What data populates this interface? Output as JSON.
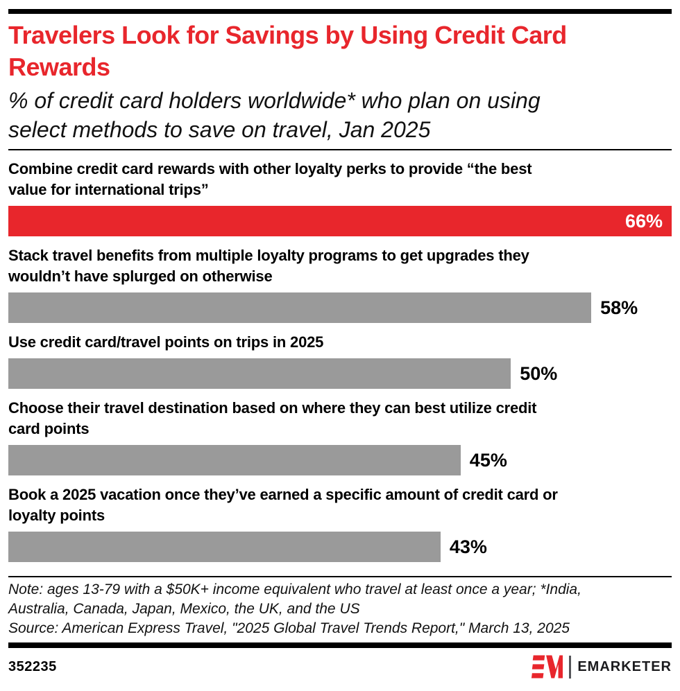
{
  "colors": {
    "accent": "#e8262c",
    "bar_gray": "#9a9a9a",
    "text": "#000000",
    "logo_divider": "#55565a",
    "logo_text": "#1b1b1e"
  },
  "header": {
    "title_lines": [
      "Travelers Look for Savings by Using Credit Card",
      "Rewards"
    ],
    "subtitle_lines": [
      "% of credit card holders worldwide* who plan on using",
      "select methods to save on travel, Jan 2025"
    ]
  },
  "bars": [
    {
      "label_lines": [
        "Combine credit card rewards with other loyalty perks to provide “the best",
        "value for international trips”"
      ],
      "value_label": "66%"
    },
    {
      "label_lines": [
        "Stack travel benefits from multiple loyalty programs to get upgrades they",
        "wouldn’t have splurged on otherwise"
      ],
      "value_label": "58%"
    },
    {
      "label_lines": [
        "Use credit card/travel points on trips in 2025"
      ],
      "value_label": "50%"
    },
    {
      "label_lines": [
        "Choose their travel destination based on where they can best utilize credit",
        "card points"
      ],
      "value_label": "45%"
    },
    {
      "label_lines": [
        "Book a 2025 vacation once they’ve earned a specific amount of credit card or",
        "loyalty points"
      ],
      "value_label": "43%"
    }
  ],
  "chart_data": {
    "type": "bar",
    "orientation": "horizontal",
    "title": "Travelers Look for Savings by Using Credit Card Rewards",
    "subtitle": "% of credit card holders worldwide* who plan on using select methods to save on travel, Jan 2025",
    "categories": [
      "Combine credit card rewards with other loyalty perks to provide “the best value for international trips”",
      "Stack travel benefits from multiple loyalty programs to get upgrades they wouldn’t have splurged on otherwise",
      "Use credit card/travel points on trips in 2025",
      "Choose their travel destination based on where they can best utilize credit card points",
      "Book a 2025 vacation once they’ve earned a specific amount of credit card or loyalty points"
    ],
    "values": [
      66,
      58,
      50,
      45,
      43
    ],
    "value_labels": [
      "66%",
      "58%",
      "50%",
      "45%",
      "43%"
    ],
    "xlim": [
      0,
      66
    ],
    "highlight_index": 0,
    "highlight_color": "#e8262c",
    "default_color": "#9a9a9a",
    "grid": false,
    "legend": false,
    "value_label_position": "inside end for highlighted bar, outside end for others"
  },
  "footer": {
    "note_lines": [
      "Note: ages 13-79 with a $50K+ income equivalent who travel at least once a year; *India,",
      "Australia, Canada, Japan, Mexico, the UK, and the US",
      "Source: American Express Travel, \"2025 Global Travel Trends Report,\" March 13, 2025"
    ],
    "chart_id": "352235",
    "brand": "EMARKETER"
  }
}
